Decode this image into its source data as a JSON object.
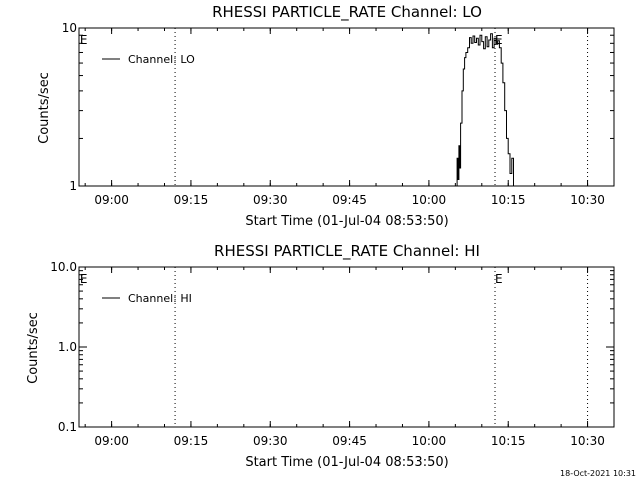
{
  "timestamp": "18-Oct-2021 10:31",
  "chart_data": [
    {
      "type": "line",
      "title": "RHESSI PARTICLE_RATE Channel: LO",
      "xlabel": "Start Time (01-Jul-04 08:53:50)",
      "ylabel": "Counts/sec",
      "yscale": "log",
      "ylim": [
        1,
        10
      ],
      "xlim": [
        "08:53:50",
        "10:35:00"
      ],
      "xticks": [
        "09:00",
        "09:15",
        "09:30",
        "09:45",
        "10:00",
        "10:15",
        "10:30"
      ],
      "yticks": [
        "1",
        "10"
      ],
      "grid": false,
      "legend": "top-left",
      "event_lines": [
        "09:12:00",
        "10:12:30",
        "10:30:00"
      ],
      "event_markers": [
        {
          "x": "08:54:00",
          "label": "E"
        },
        {
          "x": "10:12:30",
          "label": "E"
        }
      ],
      "series": [
        {
          "name": "Channel: LO",
          "x": [
            "10:05:00",
            "10:05:20",
            "10:05:30",
            "10:05:40",
            "10:05:50",
            "10:06:00",
            "10:06:15",
            "10:06:30",
            "10:06:45",
            "10:07:00",
            "10:07:20",
            "10:07:40",
            "10:08:00",
            "10:08:20",
            "10:08:40",
            "10:09:00",
            "10:09:20",
            "10:09:40",
            "10:10:00",
            "10:10:20",
            "10:10:40",
            "10:11:00",
            "10:11:20",
            "10:11:40",
            "10:12:00",
            "10:12:20",
            "10:12:40",
            "10:13:00",
            "10:13:20",
            "10:13:40",
            "10:14:00",
            "10:14:20",
            "10:14:40",
            "10:15:00",
            "10:15:20",
            "10:15:40",
            "10:16:00"
          ],
          "y": [
            1.0,
            1.5,
            1.1,
            1.8,
            1.3,
            2.5,
            4.0,
            5.5,
            6.5,
            7.0,
            7.5,
            8.7,
            8.0,
            8.9,
            8.1,
            8.6,
            7.8,
            9.0,
            8.2,
            7.4,
            8.8,
            7.6,
            8.4,
            9.2,
            7.5,
            8.6,
            7.9,
            8.3,
            7.5,
            6.0,
            4.5,
            3.0,
            2.0,
            1.6,
            1.2,
            1.5,
            1.0
          ]
        }
      ]
    },
    {
      "type": "line",
      "title": "RHESSI PARTICLE_RATE Channel: HI",
      "xlabel": "Start Time (01-Jul-04 08:53:50)",
      "ylabel": "Counts/sec",
      "yscale": "log",
      "ylim": [
        0.1,
        10
      ],
      "xlim": [
        "08:53:50",
        "10:35:00"
      ],
      "xticks": [
        "09:00",
        "09:15",
        "09:30",
        "09:45",
        "10:00",
        "10:15",
        "10:30"
      ],
      "yticks": [
        "0.1",
        "1.0",
        "10.0"
      ],
      "grid": false,
      "legend": "top-left",
      "event_lines": [
        "09:12:00",
        "10:12:30",
        "10:30:00"
      ],
      "event_markers": [
        {
          "x": "08:54:00",
          "label": "E"
        },
        {
          "x": "10:12:30",
          "label": "E"
        }
      ],
      "series": [
        {
          "name": "Channel: HI",
          "x": [],
          "y": []
        }
      ]
    }
  ]
}
